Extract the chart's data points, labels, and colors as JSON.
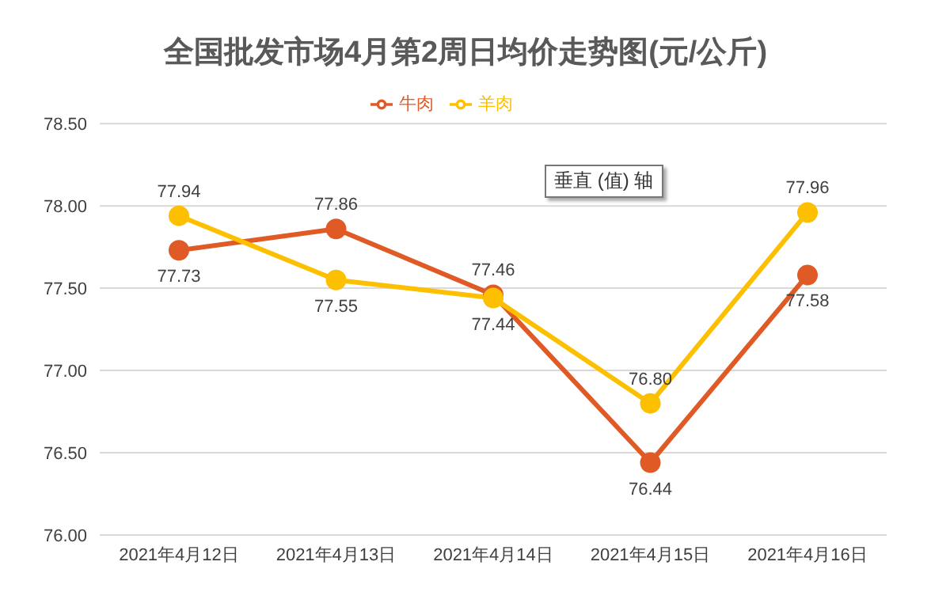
{
  "chart_data": {
    "type": "line",
    "title": "全国批发市场4月第2周日均价走势图(元/公斤)",
    "categories": [
      "2021年4月12日",
      "2021年4月13日",
      "2021年4月14日",
      "2021年4月15日",
      "2021年4月16日"
    ],
    "series": [
      {
        "name": "牛肉",
        "color": "#e05a26",
        "values": [
          77.73,
          77.86,
          77.46,
          76.44,
          77.58
        ],
        "value_labels": [
          "77.73",
          "77.86",
          "77.46",
          "76.44",
          "77.58"
        ]
      },
      {
        "name": "羊肉",
        "color": "#fcc000",
        "values": [
          77.94,
          77.55,
          77.44,
          76.8,
          77.96
        ],
        "value_labels": [
          "77.94",
          "77.55",
          "77.44",
          "76.80",
          "77.96"
        ]
      }
    ],
    "ylim": [
      76,
      78.5
    ],
    "yticks": [
      {
        "value": 76,
        "label": "76.00"
      },
      {
        "value": 76.5,
        "label": "76.50"
      },
      {
        "value": 77,
        "label": "77.00"
      },
      {
        "value": 77.5,
        "label": "77.50"
      },
      {
        "value": 78,
        "label": "78.00"
      },
      {
        "value": 78.5,
        "label": "78.50"
      }
    ],
    "grid": "y",
    "legend": "top",
    "marker": "circle",
    "line_style": "solid",
    "annotations": [
      "垂直 (值) 轴"
    ]
  }
}
